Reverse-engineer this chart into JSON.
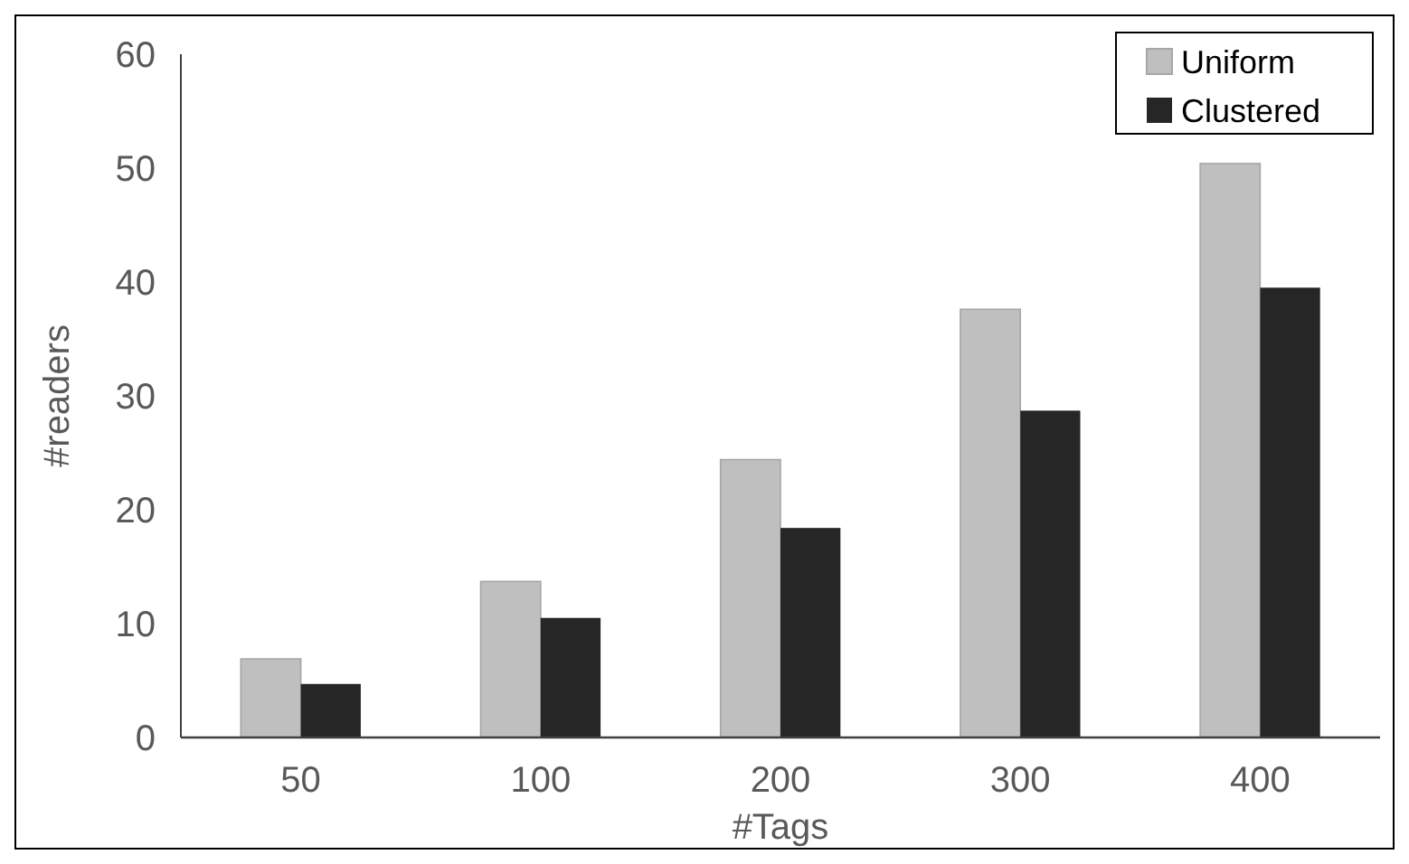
{
  "chart_data": {
    "type": "bar",
    "xlabel": "#Tags",
    "ylabel": "#readers",
    "categories": [
      "50",
      "100",
      "200",
      "300",
      "400"
    ],
    "series": [
      {
        "name": "Uniform",
        "color": "#bfbfbf",
        "values": [
          6.9,
          13.7,
          24.4,
          37.6,
          50.4
        ]
      },
      {
        "name": "Clustered",
        "color": "#262626",
        "values": [
          4.7,
          10.5,
          18.4,
          28.7,
          39.5
        ]
      }
    ],
    "ylim": [
      0,
      60
    ],
    "yticks": [
      0,
      10,
      20,
      30,
      40,
      50,
      60
    ],
    "grid": false,
    "legend": "top right"
  }
}
